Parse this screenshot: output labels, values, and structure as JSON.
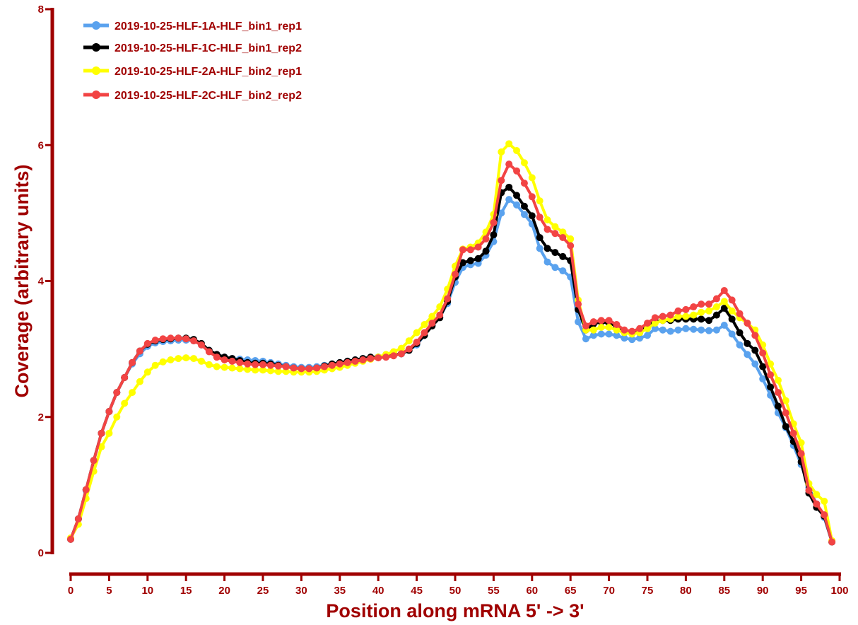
{
  "chart_data": {
    "type": "line",
    "xlabel": "Position along mRNA 5' -> 3'",
    "ylabel": "Coverage (arbitrary units)",
    "xlim": [
      0,
      100
    ],
    "ylim": [
      0,
      8
    ],
    "x_ticks": [
      0,
      5,
      10,
      15,
      20,
      25,
      30,
      35,
      40,
      45,
      50,
      55,
      60,
      65,
      70,
      75,
      80,
      85,
      90,
      95,
      100
    ],
    "y_ticks": [
      0,
      2,
      4,
      6,
      8
    ],
    "grid": false,
    "legend_position": "top-left",
    "x": [
      0,
      1,
      2,
      3,
      4,
      5,
      6,
      7,
      8,
      9,
      10,
      11,
      12,
      13,
      14,
      15,
      16,
      17,
      18,
      19,
      20,
      21,
      22,
      23,
      24,
      25,
      26,
      27,
      28,
      29,
      30,
      31,
      32,
      33,
      34,
      35,
      36,
      37,
      38,
      39,
      40,
      41,
      42,
      43,
      44,
      45,
      46,
      47,
      48,
      49,
      50,
      51,
      52,
      53,
      54,
      55,
      56,
      57,
      58,
      59,
      60,
      61,
      62,
      63,
      64,
      65,
      66,
      67,
      68,
      69,
      70,
      71,
      72,
      73,
      74,
      75,
      76,
      77,
      78,
      79,
      80,
      81,
      82,
      83,
      84,
      85,
      86,
      87,
      88,
      89,
      90,
      91,
      92,
      93,
      94,
      95,
      96,
      97,
      98,
      99
    ],
    "series": [
      {
        "name": "2019-10-25-HLF-1A-HLF_bin1_rep1",
        "color": "#5aa2ee",
        "values": [
          0.2,
          0.5,
          0.92,
          1.36,
          1.76,
          2.08,
          2.36,
          2.58,
          2.78,
          2.93,
          3.04,
          3.09,
          3.11,
          3.12,
          3.13,
          3.13,
          3.12,
          3.06,
          2.98,
          2.92,
          2.88,
          2.86,
          2.85,
          2.84,
          2.83,
          2.82,
          2.8,
          2.78,
          2.76,
          2.74,
          2.73,
          2.73,
          2.74,
          2.76,
          2.78,
          2.8,
          2.82,
          2.84,
          2.86,
          2.87,
          2.88,
          2.89,
          2.91,
          2.93,
          2.98,
          3.06,
          3.2,
          3.35,
          3.47,
          3.67,
          3.98,
          4.2,
          4.24,
          4.26,
          4.38,
          4.58,
          5.0,
          5.2,
          5.12,
          4.98,
          4.84,
          4.48,
          4.28,
          4.2,
          4.15,
          4.06,
          3.4,
          3.15,
          3.2,
          3.22,
          3.22,
          3.2,
          3.16,
          3.14,
          3.16,
          3.2,
          3.3,
          3.28,
          3.26,
          3.28,
          3.3,
          3.29,
          3.28,
          3.27,
          3.28,
          3.35,
          3.22,
          3.06,
          2.92,
          2.78,
          2.56,
          2.32,
          2.06,
          1.84,
          1.58,
          1.3,
          0.96,
          0.72,
          0.52,
          0.16
        ]
      },
      {
        "name": "2019-10-25-HLF-1C-HLF_bin1_rep2",
        "color": "#000000",
        "values": [
          0.2,
          0.5,
          0.93,
          1.36,
          1.76,
          2.08,
          2.36,
          2.58,
          2.8,
          2.97,
          3.07,
          3.12,
          3.14,
          3.15,
          3.16,
          3.16,
          3.14,
          3.08,
          2.98,
          2.92,
          2.88,
          2.86,
          2.83,
          2.8,
          2.79,
          2.79,
          2.78,
          2.76,
          2.74,
          2.72,
          2.71,
          2.71,
          2.72,
          2.75,
          2.78,
          2.8,
          2.82,
          2.84,
          2.86,
          2.88,
          2.88,
          2.89,
          2.91,
          2.93,
          2.98,
          3.08,
          3.2,
          3.34,
          3.46,
          3.7,
          4.06,
          4.27,
          4.3,
          4.33,
          4.44,
          4.68,
          5.3,
          5.38,
          5.26,
          5.1,
          4.96,
          4.64,
          4.48,
          4.42,
          4.36,
          4.3,
          3.58,
          3.28,
          3.37,
          3.4,
          3.38,
          3.34,
          3.26,
          3.24,
          3.24,
          3.34,
          3.4,
          3.42,
          3.42,
          3.44,
          3.44,
          3.44,
          3.44,
          3.42,
          3.5,
          3.6,
          3.44,
          3.24,
          3.08,
          2.98,
          2.74,
          2.44,
          2.16,
          1.86,
          1.64,
          1.34,
          0.88,
          0.67,
          0.54,
          0.16
        ]
      },
      {
        "name": "2019-10-25-HLF-2A-HLF_bin2_rep1",
        "color": "#ffff00",
        "values": [
          0.22,
          0.42,
          0.8,
          1.2,
          1.56,
          1.76,
          2.0,
          2.2,
          2.36,
          2.52,
          2.66,
          2.76,
          2.81,
          2.84,
          2.86,
          2.87,
          2.86,
          2.82,
          2.77,
          2.74,
          2.73,
          2.72,
          2.71,
          2.7,
          2.69,
          2.69,
          2.68,
          2.67,
          2.67,
          2.66,
          2.66,
          2.66,
          2.67,
          2.69,
          2.71,
          2.73,
          2.76,
          2.79,
          2.82,
          2.85,
          2.88,
          2.92,
          2.96,
          3.01,
          3.12,
          3.24,
          3.36,
          3.48,
          3.62,
          3.88,
          4.22,
          4.47,
          4.5,
          4.56,
          4.72,
          4.98,
          5.9,
          6.02,
          5.92,
          5.74,
          5.52,
          5.18,
          4.9,
          4.8,
          4.72,
          4.62,
          3.72,
          3.28,
          3.28,
          3.32,
          3.32,
          3.28,
          3.24,
          3.22,
          3.24,
          3.3,
          3.38,
          3.42,
          3.44,
          3.48,
          3.48,
          3.5,
          3.54,
          3.56,
          3.62,
          3.7,
          3.56,
          3.46,
          3.38,
          3.28,
          3.06,
          2.78,
          2.54,
          2.24,
          1.9,
          1.62,
          1.02,
          0.86,
          0.76,
          0.18
        ]
      },
      {
        "name": "2019-10-25-HLF-2C-HLF_bin2_rep2",
        "color": "#f24444",
        "values": [
          0.2,
          0.5,
          0.93,
          1.36,
          1.76,
          2.08,
          2.36,
          2.58,
          2.8,
          2.97,
          3.08,
          3.13,
          3.15,
          3.16,
          3.16,
          3.15,
          3.12,
          3.06,
          2.96,
          2.88,
          2.84,
          2.82,
          2.8,
          2.78,
          2.77,
          2.77,
          2.76,
          2.75,
          2.74,
          2.72,
          2.71,
          2.71,
          2.72,
          2.74,
          2.76,
          2.78,
          2.8,
          2.82,
          2.84,
          2.86,
          2.87,
          2.88,
          2.9,
          2.93,
          3.0,
          3.1,
          3.24,
          3.38,
          3.5,
          3.74,
          4.1,
          4.46,
          4.46,
          4.5,
          4.62,
          4.86,
          5.48,
          5.72,
          5.62,
          5.44,
          5.24,
          4.94,
          4.76,
          4.7,
          4.64,
          4.52,
          3.66,
          3.34,
          3.4,
          3.42,
          3.42,
          3.36,
          3.28,
          3.26,
          3.3,
          3.38,
          3.46,
          3.48,
          3.5,
          3.56,
          3.58,
          3.62,
          3.66,
          3.66,
          3.74,
          3.86,
          3.72,
          3.52,
          3.38,
          3.2,
          2.94,
          2.62,
          2.36,
          2.06,
          1.76,
          1.46,
          0.92,
          0.72,
          0.56,
          0.16
        ]
      }
    ]
  }
}
